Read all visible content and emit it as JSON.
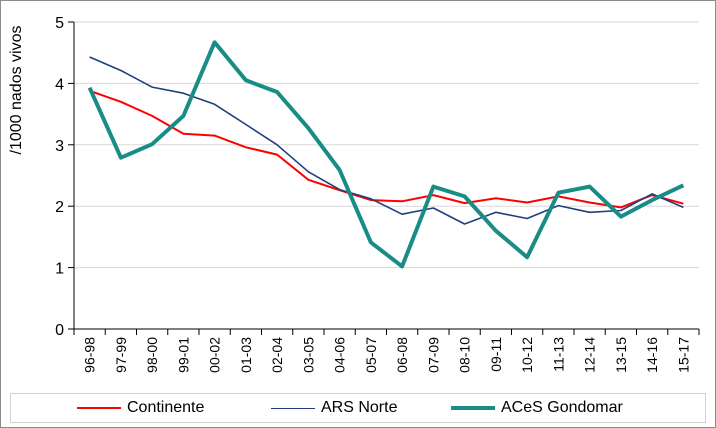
{
  "chart_data": {
    "type": "line",
    "ylabel": "/1000 nados vivos",
    "xlabel": "",
    "ylim": [
      0,
      5
    ],
    "yticks": [
      0,
      1,
      2,
      3,
      4,
      5
    ],
    "grid": true,
    "legend_position": "bottom",
    "categories": [
      "96-98",
      "97-99",
      "98-00",
      "99-01",
      "00-02",
      "01-03",
      "02-04",
      "03-05",
      "04-06",
      "05-07",
      "06-08",
      "07-09",
      "08-10",
      "09-11",
      "10-12",
      "11-13",
      "12-14",
      "13-15",
      "14-16",
      "15-17"
    ],
    "series": [
      {
        "name": "Continente",
        "color": "#ff0000",
        "values": [
          3.88,
          3.7,
          3.47,
          3.18,
          3.15,
          2.96,
          2.84,
          2.43,
          2.26,
          2.1,
          2.08,
          2.18,
          2.05,
          2.13,
          2.06,
          2.16,
          2.06,
          1.98,
          2.18,
          2.04
        ]
      },
      {
        "name": "ARS Norte",
        "color": "#1f3f7f",
        "values": [
          4.43,
          4.21,
          3.94,
          3.84,
          3.66,
          3.33,
          3.0,
          2.56,
          2.27,
          2.12,
          1.87,
          1.97,
          1.71,
          1.9,
          1.8,
          2.01,
          1.9,
          1.93,
          2.2,
          1.98
        ]
      },
      {
        "name": "ACeS Gondomar",
        "color": "#1a8c86",
        "values": [
          3.93,
          2.79,
          3.01,
          3.47,
          4.67,
          4.05,
          3.86,
          3.27,
          2.59,
          1.41,
          1.02,
          2.32,
          2.16,
          1.6,
          1.17,
          2.22,
          2.32,
          1.83,
          2.1,
          2.34
        ]
      }
    ]
  }
}
